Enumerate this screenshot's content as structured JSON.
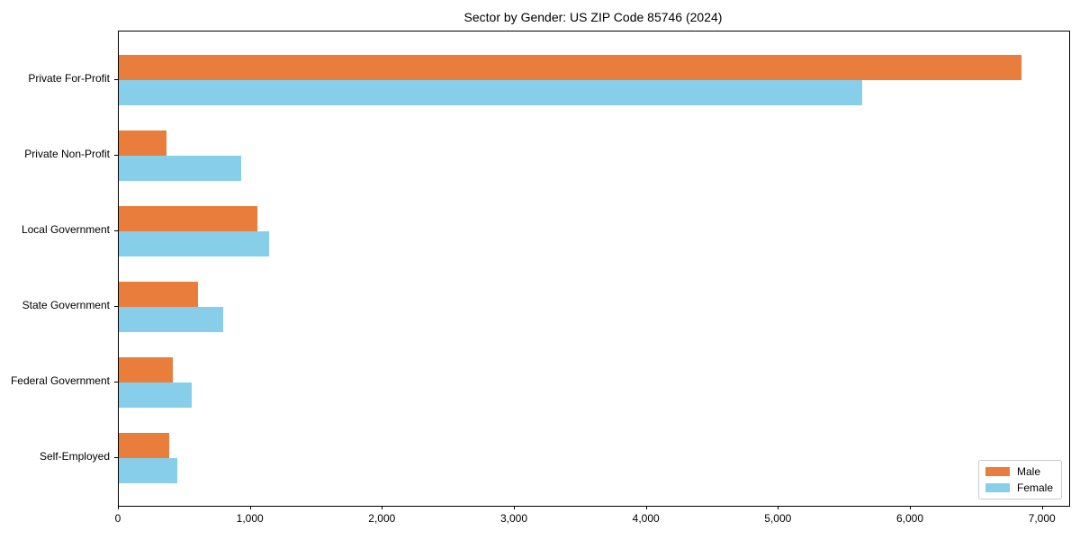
{
  "figure": {
    "background": "#ffffff",
    "axis_color": "#000000",
    "text_color": "#000000",
    "legend_border_color": "#cccccc"
  },
  "chart_data": {
    "type": "bar",
    "orientation": "horizontal",
    "title": "Sector by Gender: US ZIP Code 85746 (2024)",
    "categories": [
      "Private For-Profit",
      "Private Non-Profit",
      "Local Government",
      "State Government",
      "Federal Government",
      "Self-Employed"
    ],
    "series": [
      {
        "name": "Male",
        "color": "#e87d3c",
        "values": [
          6840,
          360,
          1050,
          600,
          410,
          380
        ]
      },
      {
        "name": "Female",
        "color": "#87ceeb",
        "values": [
          5630,
          930,
          1140,
          790,
          550,
          440
        ]
      }
    ],
    "xlabel": "",
    "ylabel": "",
    "xlim": [
      0,
      7200
    ],
    "xticks": [
      0,
      1000,
      2000,
      3000,
      4000,
      5000,
      6000,
      7000
    ],
    "xtick_labels": [
      "0",
      "1,000",
      "2,000",
      "3,000",
      "4,000",
      "5,000",
      "6,000",
      "7,000"
    ],
    "grid": false,
    "legend": {
      "position": "lower-right",
      "entries": [
        "Male",
        "Female"
      ]
    }
  }
}
